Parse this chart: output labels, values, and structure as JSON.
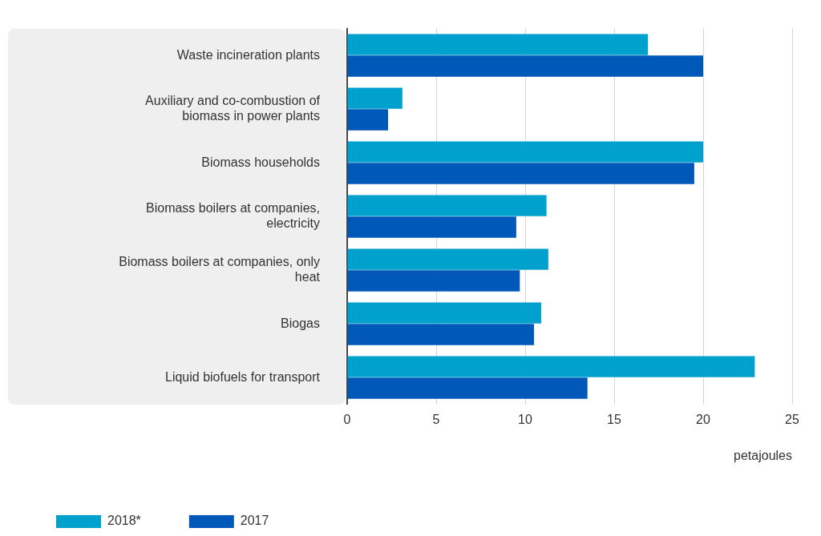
{
  "chart_data": {
    "type": "bar",
    "orientation": "horizontal",
    "xlabel": "petajoules",
    "categories": [
      "Waste incineration plants",
      "Auxiliary and co-combustion of biomass in power plants",
      "Biomass households",
      "Biomass boilers at companies, electricity",
      "Biomass boilers at companies, only heat",
      "Biogas",
      "Liquid biofuels for transport"
    ],
    "series": [
      {
        "name": "2018*",
        "color": "#00a1cd",
        "values": [
          16.9,
          3.1,
          20.0,
          11.2,
          11.3,
          10.9,
          22.9
        ]
      },
      {
        "name": "2017",
        "color": "#0058b8",
        "values": [
          20.0,
          2.3,
          19.5,
          9.5,
          9.7,
          10.5,
          13.5
        ]
      }
    ],
    "xlim": [
      0,
      25
    ],
    "xticks": [
      0,
      5,
      10,
      15,
      20,
      25
    ],
    "grid": "x",
    "legend": "bottom left"
  }
}
